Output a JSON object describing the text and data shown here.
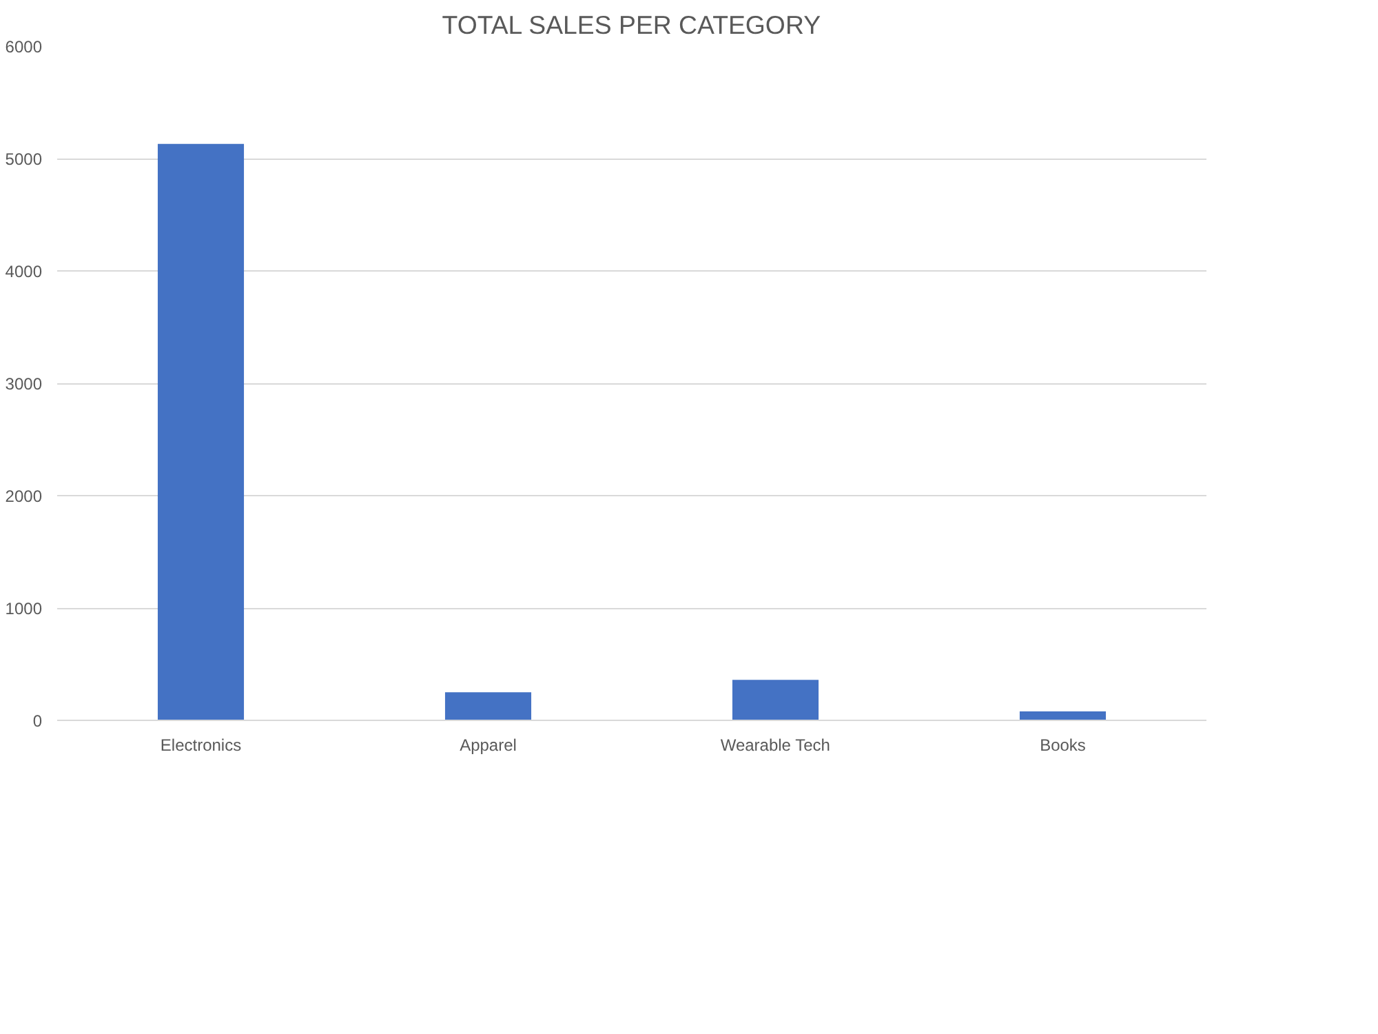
{
  "chart_data": {
    "type": "bar",
    "title": "TOTAL SALES PER CATEGORY",
    "categories": [
      "Electronics",
      "Apparel",
      "Wearable Tech",
      "Books"
    ],
    "values": [
      5130,
      250,
      360,
      80
    ],
    "color": "#4472c4",
    "ylim": [
      0,
      6000
    ],
    "yticks": [
      0,
      1000,
      2000,
      3000,
      4000,
      5000,
      6000
    ],
    "grid": "y"
  }
}
